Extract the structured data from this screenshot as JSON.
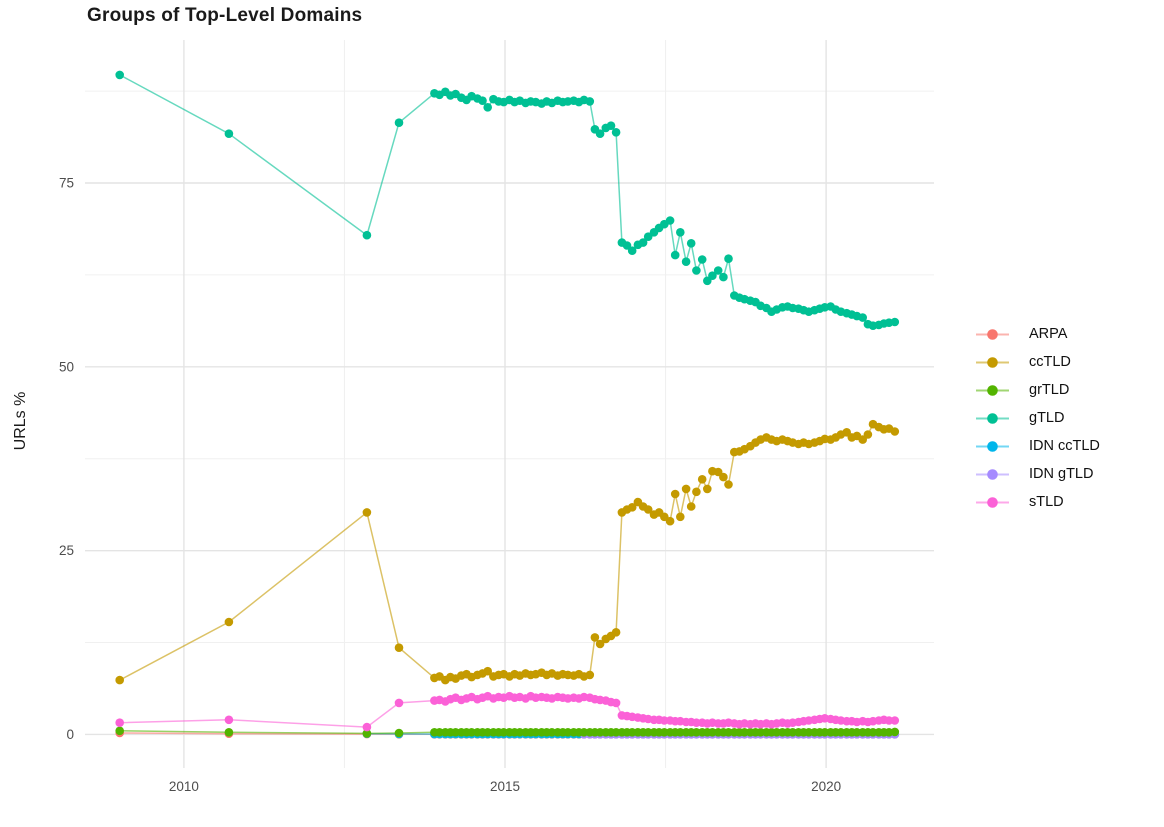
{
  "page": {
    "background": "#ffffff"
  },
  "chart_data": {
    "type": "line",
    "title": "Groups of Top-Level Domains",
    "xlabel": "",
    "ylabel": "URLs %",
    "grid": true,
    "legend_position": "right",
    "panel_bg": "#ffffff",
    "grid_major_color": "#e4e4e4",
    "grid_minor_color": "#f0f0f0",
    "tick_label_color": "#4d4d4d",
    "xlim": [
      2008.46,
      2021.68
    ],
    "ylim": [
      -4.56,
      94.45
    ],
    "x_ticks": {
      "values": [
        2010,
        2015,
        2020
      ],
      "labels": [
        "2010",
        "2015",
        "2020"
      ]
    },
    "x_ticks_minor": [
      2012.5,
      2017.5
    ],
    "y_ticks": {
      "values": [
        0,
        25,
        50,
        75
      ],
      "labels": [
        "0",
        "25",
        "50",
        "75"
      ]
    },
    "y_ticks_minor": [
      12.5,
      37.5,
      62.5,
      87.5
    ],
    "x": [
      2009.0,
      2010.7,
      2012.85,
      2013.35,
      2013.9,
      2013.98,
      2014.07,
      2014.15,
      2014.23,
      2014.32,
      2014.4,
      2014.48,
      2014.57,
      2014.65,
      2014.73,
      2014.82,
      2014.9,
      2014.98,
      2015.07,
      2015.15,
      2015.23,
      2015.32,
      2015.4,
      2015.48,
      2015.57,
      2015.65,
      2015.73,
      2015.82,
      2015.9,
      2015.98,
      2016.07,
      2016.15,
      2016.23,
      2016.32,
      2016.4,
      2016.48,
      2016.57,
      2016.65,
      2016.73,
      2016.82,
      2016.9,
      2016.98,
      2017.07,
      2017.15,
      2017.23,
      2017.32,
      2017.4,
      2017.48,
      2017.57,
      2017.65,
      2017.73,
      2017.82,
      2017.9,
      2017.98,
      2018.07,
      2018.15,
      2018.23,
      2018.32,
      2018.4,
      2018.48,
      2018.57,
      2018.65,
      2018.73,
      2018.82,
      2018.9,
      2018.98,
      2019.07,
      2019.15,
      2019.23,
      2019.32,
      2019.4,
      2019.48,
      2019.57,
      2019.65,
      2019.73,
      2019.82,
      2019.9,
      2019.98,
      2020.07,
      2020.15,
      2020.23,
      2020.32,
      2020.4,
      2020.48,
      2020.57,
      2020.65,
      2020.73,
      2020.82,
      2020.9,
      2020.98,
      2021.07
    ],
    "draw_order": [
      "ARPA",
      "IDN ccTLD",
      "IDN gTLD",
      "ccTLD",
      "grTLD",
      "gTLD",
      "sTLD"
    ],
    "series": [
      {
        "name": "ARPA",
        "color": "#F8766D",
        "values": [
          0.2,
          0.1,
          0.05,
          0.03,
          0.02,
          0.02,
          0.02,
          0.02,
          0.02,
          0.02,
          0.02,
          0.02,
          0.02,
          0.02,
          0.02,
          0.02,
          0.02,
          0.02,
          0.02,
          0.02,
          0.02,
          0.02,
          0.02,
          0.02,
          0.02,
          0.02,
          0.02,
          0.02,
          0.02,
          0.02,
          0.02,
          0.02,
          0.02,
          0.02,
          0.02,
          0.02,
          0.02,
          0.02,
          0.02,
          0.02,
          0.02,
          0.02,
          0.02,
          0.02,
          0.02,
          0.02,
          0.02,
          0.02,
          0.02,
          0.02,
          0.02,
          0.02,
          0.02,
          0.02,
          0.02,
          0.02,
          0.02,
          0.02,
          0.02,
          0.02,
          0.02,
          0.02,
          0.02,
          0.02,
          0.02,
          0.02,
          0.02,
          0.02,
          0.02,
          0.02,
          0.02,
          0.02,
          0.02,
          0.02,
          0.02,
          0.02,
          0.02,
          0.02,
          0.02,
          0.02,
          0.02,
          0.02,
          0.02,
          0.02,
          0.02,
          0.02,
          0.02,
          0.02,
          0.02,
          0.02,
          0.02
        ]
      },
      {
        "name": "ccTLD",
        "color": "#C49A00",
        "values": [
          7.4,
          15.3,
          30.2,
          11.8,
          7.7,
          7.9,
          7.4,
          7.8,
          7.6,
          8.0,
          8.2,
          7.8,
          8.1,
          8.3,
          8.6,
          7.9,
          8.1,
          8.2,
          7.9,
          8.2,
          8.0,
          8.3,
          8.1,
          8.2,
          8.4,
          8.1,
          8.3,
          8.0,
          8.2,
          8.1,
          8.0,
          8.2,
          7.9,
          8.1,
          13.2,
          12.3,
          13.0,
          13.4,
          13.9,
          30.2,
          30.6,
          30.9,
          31.6,
          31.0,
          30.6,
          29.9,
          30.2,
          29.6,
          29.0,
          32.7,
          29.6,
          33.4,
          31.0,
          33.0,
          34.7,
          33.4,
          35.8,
          35.7,
          35.0,
          34.0,
          38.4,
          38.5,
          38.8,
          39.2,
          39.7,
          40.1,
          40.4,
          40.1,
          39.9,
          40.1,
          39.9,
          39.7,
          39.5,
          39.7,
          39.5,
          39.7,
          39.9,
          40.2,
          40.1,
          40.4,
          40.8,
          41.1,
          40.4,
          40.6,
          40.1,
          40.8,
          42.2,
          41.8,
          41.5,
          41.6,
          41.2
        ]
      },
      {
        "name": "grTLD",
        "color": "#53B400",
        "values": [
          0.5,
          0.3,
          0.15,
          0.2,
          0.3,
          0.3,
          0.3,
          0.3,
          0.3,
          0.3,
          0.3,
          0.3,
          0.3,
          0.3,
          0.3,
          0.3,
          0.3,
          0.3,
          0.3,
          0.3,
          0.3,
          0.3,
          0.3,
          0.3,
          0.3,
          0.3,
          0.3,
          0.3,
          0.3,
          0.3,
          0.3,
          0.3,
          0.3,
          0.3,
          0.3,
          0.3,
          0.3,
          0.3,
          0.3,
          0.3,
          0.3,
          0.3,
          0.3,
          0.3,
          0.3,
          0.3,
          0.3,
          0.3,
          0.3,
          0.3,
          0.3,
          0.3,
          0.3,
          0.3,
          0.3,
          0.3,
          0.3,
          0.3,
          0.3,
          0.3,
          0.3,
          0.3,
          0.3,
          0.3,
          0.3,
          0.3,
          0.3,
          0.3,
          0.3,
          0.3,
          0.3,
          0.3,
          0.3,
          0.3,
          0.3,
          0.3,
          0.3,
          0.3,
          0.3,
          0.3,
          0.3,
          0.3,
          0.3,
          0.3,
          0.3,
          0.3,
          0.3,
          0.3,
          0.3,
          0.3,
          0.35
        ]
      },
      {
        "name": "gTLD",
        "color": "#00C094",
        "values": [
          89.7,
          81.7,
          67.9,
          83.2,
          87.2,
          87.0,
          87.4,
          86.9,
          87.1,
          86.6,
          86.3,
          86.8,
          86.5,
          86.2,
          85.3,
          86.4,
          86.1,
          86.0,
          86.3,
          86.0,
          86.2,
          85.9,
          86.1,
          86.0,
          85.8,
          86.1,
          85.9,
          86.2,
          86.0,
          86.1,
          86.2,
          86.0,
          86.3,
          86.1,
          82.3,
          81.7,
          82.5,
          82.8,
          81.9,
          66.9,
          66.5,
          65.8,
          66.6,
          66.9,
          67.7,
          68.3,
          68.9,
          69.4,
          69.9,
          65.2,
          68.3,
          64.3,
          66.8,
          63.1,
          64.6,
          61.7,
          62.4,
          63.1,
          62.2,
          64.7,
          59.7,
          59.4,
          59.2,
          59.0,
          58.8,
          58.3,
          58.0,
          57.5,
          57.8,
          58.1,
          58.2,
          58.0,
          57.9,
          57.7,
          57.5,
          57.7,
          57.9,
          58.1,
          58.2,
          57.8,
          57.5,
          57.3,
          57.1,
          56.9,
          56.7,
          55.8,
          55.6,
          55.7,
          55.9,
          56.0,
          56.1
        ]
      },
      {
        "name": "IDN ccTLD",
        "color": "#00B6EB",
        "values": [
          null,
          null,
          0.1,
          0.08,
          0.05,
          0.05,
          0.05,
          0.05,
          0.05,
          0.05,
          0.05,
          0.05,
          0.05,
          0.05,
          0.05,
          0.05,
          0.05,
          0.05,
          0.05,
          0.05,
          0.05,
          0.05,
          0.05,
          0.05,
          0.05,
          0.05,
          0.05,
          0.05,
          0.05,
          0.05,
          0.05,
          0.05,
          0.05,
          0.05,
          0.05,
          0.05,
          0.05,
          0.05,
          0.05,
          0.05,
          0.05,
          0.05,
          0.05,
          0.05,
          0.05,
          0.05,
          0.05,
          0.05,
          0.05,
          0.05,
          0.05,
          0.05,
          0.05,
          0.05,
          0.05,
          0.05,
          0.05,
          0.05,
          0.05,
          0.05,
          0.05,
          0.05,
          0.05,
          0.05,
          0.05,
          0.05,
          0.05,
          0.05,
          0.05,
          0.05,
          0.05,
          0.05,
          0.05,
          0.05,
          0.05,
          0.05,
          0.05,
          0.05,
          0.05,
          0.05,
          0.05,
          0.05,
          0.05,
          0.05,
          0.05,
          0.05,
          0.05,
          0.05,
          0.05,
          0.05,
          0.05
        ]
      },
      {
        "name": "IDN gTLD",
        "color": "#A58AFF",
        "values": [
          null,
          null,
          null,
          null,
          null,
          null,
          null,
          null,
          null,
          null,
          null,
          null,
          null,
          null,
          null,
          null,
          null,
          null,
          null,
          null,
          null,
          null,
          null,
          null,
          null,
          null,
          null,
          null,
          null,
          null,
          null,
          null,
          0.02,
          0.02,
          0.02,
          0.02,
          0.02,
          0.02,
          0.02,
          0.02,
          0.02,
          0.02,
          0.02,
          0.02,
          0.02,
          0.02,
          0.02,
          0.02,
          0.02,
          0.02,
          0.02,
          0.02,
          0.02,
          0.02,
          0.02,
          0.02,
          0.02,
          0.02,
          0.02,
          0.02,
          0.02,
          0.02,
          0.02,
          0.02,
          0.02,
          0.02,
          0.02,
          0.02,
          0.02,
          0.02,
          0.02,
          0.02,
          0.02,
          0.02,
          0.02,
          0.02,
          0.02,
          0.02,
          0.02,
          0.02,
          0.02,
          0.02,
          0.02,
          0.02,
          0.02,
          0.02,
          0.02,
          0.02,
          0.02,
          0.02,
          0.02
        ]
      },
      {
        "name": "sTLD",
        "color": "#FB61D7",
        "values": [
          1.6,
          2.0,
          1.0,
          4.3,
          4.6,
          4.7,
          4.5,
          4.8,
          5.0,
          4.7,
          4.9,
          5.1,
          4.8,
          5.0,
          5.2,
          4.9,
          5.1,
          5.0,
          5.2,
          5.0,
          5.1,
          4.9,
          5.2,
          5.0,
          5.1,
          5.0,
          4.9,
          5.1,
          5.0,
          4.9,
          5.0,
          4.9,
          5.1,
          5.0,
          4.8,
          4.7,
          4.6,
          4.4,
          4.3,
          2.6,
          2.5,
          2.4,
          2.3,
          2.2,
          2.1,
          2.0,
          2.0,
          1.9,
          1.9,
          1.8,
          1.8,
          1.7,
          1.7,
          1.6,
          1.6,
          1.5,
          1.6,
          1.5,
          1.5,
          1.6,
          1.5,
          1.4,
          1.5,
          1.4,
          1.5,
          1.4,
          1.5,
          1.4,
          1.5,
          1.6,
          1.5,
          1.6,
          1.7,
          1.8,
          1.9,
          2.0,
          2.1,
          2.2,
          2.1,
          2.0,
          1.9,
          1.8,
          1.8,
          1.7,
          1.8,
          1.7,
          1.8,
          1.9,
          2.0,
          1.9,
          1.9
        ]
      }
    ]
  }
}
